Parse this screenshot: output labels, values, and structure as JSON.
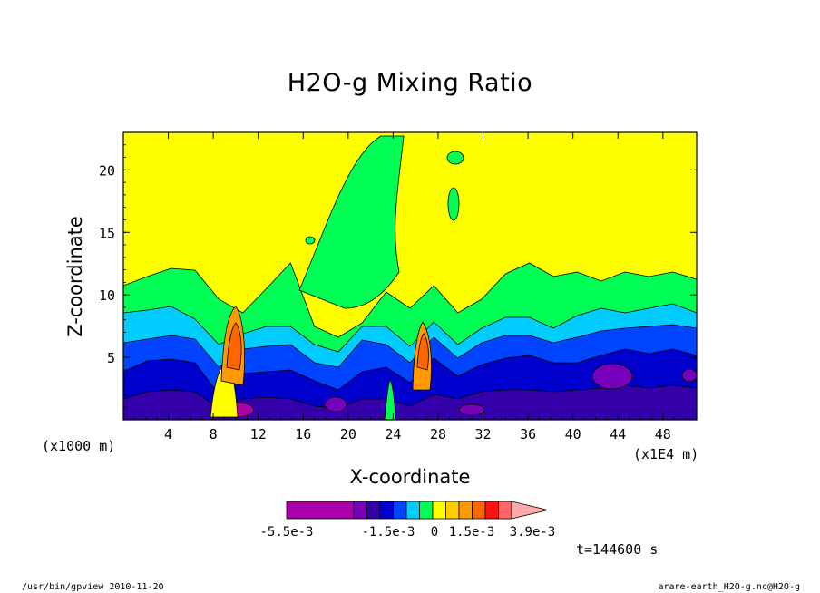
{
  "chart_data": {
    "type": "heatmap",
    "title": "H2O-g Mixing Ratio",
    "xlabel": "X-coordinate",
    "ylabel": "Z-coordinate",
    "x_unit_left": "(x1000 m)",
    "x_unit_right": "(x1E4 m)",
    "x_ticks": [
      "4",
      "8",
      "12",
      "16",
      "20",
      "24",
      "28",
      "32",
      "36",
      "40",
      "44",
      "48"
    ],
    "y_ticks": [
      "5",
      "10",
      "15",
      "20"
    ],
    "xlim": [
      0,
      51
    ],
    "ylim": [
      0,
      23
    ],
    "colorbar": {
      "labels": [
        "-5.5e-3",
        "-1.5e-3",
        "0",
        "1.5e-3",
        "3.9e-3"
      ],
      "colors": [
        "#aa00aa",
        "#aa00aa",
        "#7700bb",
        "#3300aa",
        "#0000cc",
        "#0044ff",
        "#00ccff",
        "#00ff55",
        "#ffff00",
        "#ffcc00",
        "#ff9900",
        "#ff6600",
        "#ff1111",
        "#ff6666",
        "#ffaaaa"
      ]
    }
  },
  "time_label": "t=144600 s",
  "footer_left": "/usr/bin/gpview  2010-11-20",
  "footer_right": "arare-earth_H2O-g.nc@H2O-g"
}
